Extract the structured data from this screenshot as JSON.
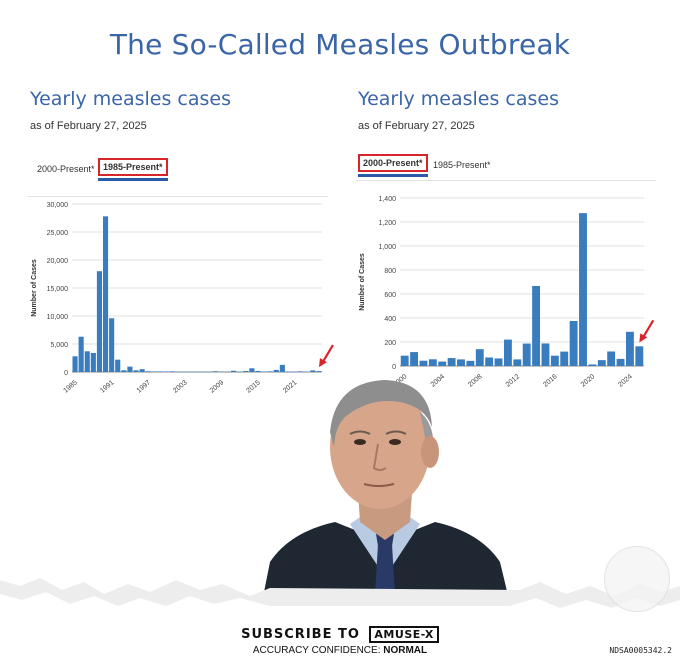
{
  "header": {
    "title": "The So-Called Measles Outbreak"
  },
  "chart_data": [
    {
      "type": "bar",
      "title": "Yearly measles cases",
      "subtitle": "as of February 27, 2025",
      "tabs": [
        {
          "label": "2000-Present*",
          "active": false
        },
        {
          "label": "1985-Present*",
          "active": true
        }
      ],
      "ylabel": "Number of Cases",
      "ylim": [
        0,
        30000
      ],
      "yticks": [
        "0",
        "5,000",
        "10,000",
        "15,000",
        "20,000",
        "25,000",
        "30,000"
      ],
      "ytick_values": [
        0,
        5000,
        10000,
        15000,
        20000,
        25000,
        30000
      ],
      "xticks": [
        "1985",
        "1991",
        "1997",
        "2003",
        "2009",
        "2015",
        "2021"
      ],
      "xtick_years": [
        1985,
        1991,
        1997,
        2003,
        2009,
        2015,
        2021
      ],
      "x": [
        1985,
        1986,
        1987,
        1988,
        1989,
        1990,
        1991,
        1992,
        1993,
        1994,
        1995,
        1996,
        1997,
        1998,
        1999,
        2000,
        2001,
        2002,
        2003,
        2004,
        2005,
        2006,
        2007,
        2008,
        2009,
        2010,
        2011,
        2012,
        2013,
        2014,
        2015,
        2016,
        2017,
        2018,
        2019,
        2020,
        2021,
        2022,
        2023,
        2024,
        2025
      ],
      "values": [
        2800,
        6300,
        3700,
        3400,
        18000,
        27800,
        9600,
        2200,
        312,
        963,
        309,
        508,
        138,
        100,
        100,
        86,
        116,
        44,
        56,
        37,
        66,
        55,
        43,
        140,
        71,
        63,
        220,
        55,
        187,
        667,
        188,
        86,
        120,
        375,
        1274,
        13,
        49,
        121,
        59,
        285,
        164
      ],
      "arrow": true,
      "color": "#3a7dbf"
    },
    {
      "type": "bar",
      "title": "Yearly measles cases",
      "subtitle": "as of February 27, 2025",
      "tabs": [
        {
          "label": "2000-Present*",
          "active": true
        },
        {
          "label": "1985-Present*",
          "active": false
        }
      ],
      "ylabel": "Number of Cases",
      "ylim": [
        0,
        1400
      ],
      "yticks": [
        "0",
        "200",
        "400",
        "600",
        "800",
        "1,000",
        "1,200",
        "1,400"
      ],
      "ytick_values": [
        0,
        200,
        400,
        600,
        800,
        1000,
        1200,
        1400
      ],
      "xticks": [
        "2000",
        "2004",
        "2008",
        "2012",
        "2016",
        "2020",
        "2024"
      ],
      "xtick_years": [
        2000,
        2004,
        2008,
        2012,
        2016,
        2020,
        2024
      ],
      "x": [
        2000,
        2001,
        2002,
        2003,
        2004,
        2005,
        2006,
        2007,
        2008,
        2009,
        2010,
        2011,
        2012,
        2013,
        2014,
        2015,
        2016,
        2017,
        2018,
        2019,
        2020,
        2021,
        2022,
        2023,
        2024,
        2025
      ],
      "values": [
        86,
        116,
        44,
        56,
        37,
        66,
        55,
        43,
        140,
        71,
        63,
        220,
        55,
        187,
        667,
        188,
        86,
        120,
        375,
        1274,
        13,
        49,
        121,
        59,
        285,
        164
      ],
      "arrow": true,
      "color": "#3a7dbf"
    }
  ],
  "footer": {
    "subscribe_text": "SUBSCRIBE TO",
    "brand": "AMUSE-X",
    "confidence_label": "ACCURACY CONFIDENCE:",
    "confidence_value": "NORMAL",
    "doc_id": "NDSA0005342.2"
  }
}
